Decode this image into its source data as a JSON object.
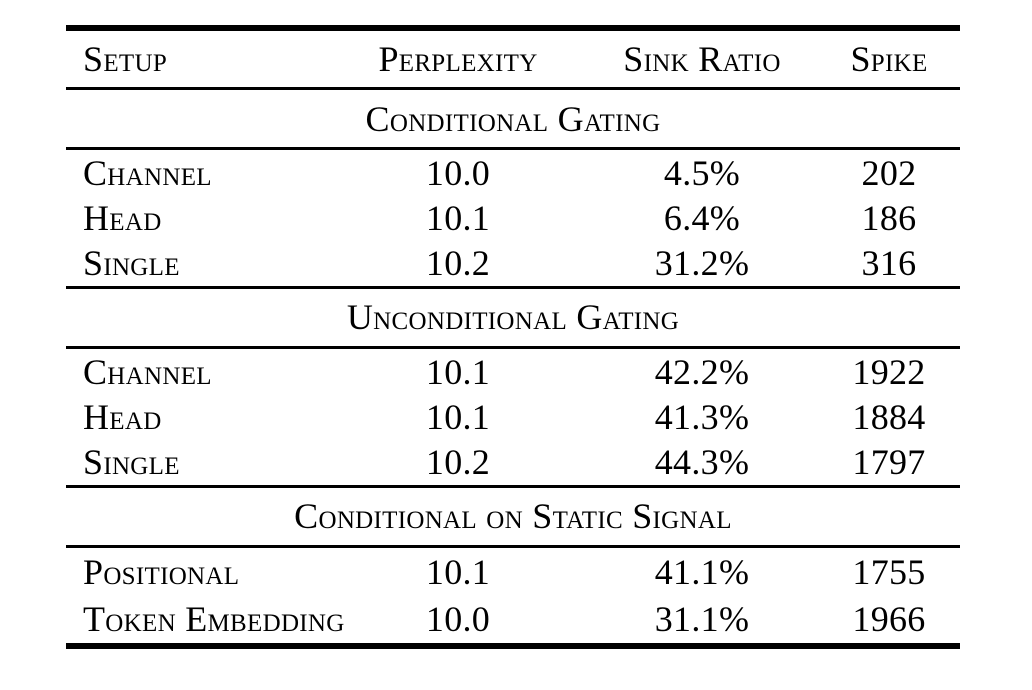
{
  "table": {
    "columns": [
      {
        "label": "Setup"
      },
      {
        "label": "Perplexity"
      },
      {
        "label": "Sink Ratio"
      },
      {
        "label": "Spike"
      }
    ],
    "sections": [
      {
        "title": "Conditional Gating",
        "rows": [
          {
            "setup": "Channel",
            "perplexity": "10.0",
            "sink_ratio": "4.5%",
            "spike": "202"
          },
          {
            "setup": "Head",
            "perplexity": "10.1",
            "sink_ratio": "6.4%",
            "spike": "186"
          },
          {
            "setup": "Single",
            "perplexity": "10.2",
            "sink_ratio": "31.2%",
            "spike": "316"
          }
        ]
      },
      {
        "title": "Unconditional Gating",
        "rows": [
          {
            "setup": "Channel",
            "perplexity": "10.1",
            "sink_ratio": "42.2%",
            "spike": "1922"
          },
          {
            "setup": "Head",
            "perplexity": "10.1",
            "sink_ratio": "41.3%",
            "spike": "1884"
          },
          {
            "setup": "Single",
            "perplexity": "10.2",
            "sink_ratio": "44.3%",
            "spike": "1797"
          }
        ]
      },
      {
        "title": "Conditional on Static Signal",
        "rows": [
          {
            "setup": "Positional",
            "perplexity": "10.1",
            "sink_ratio": "41.1%",
            "spike": "1755"
          },
          {
            "setup": "Token Embedding",
            "perplexity": "10.0",
            "sink_ratio": "31.1%",
            "spike": "1966"
          }
        ]
      }
    ],
    "colors": {
      "text": "#000000",
      "background": "#ffffff",
      "rule": "#000000"
    }
  }
}
